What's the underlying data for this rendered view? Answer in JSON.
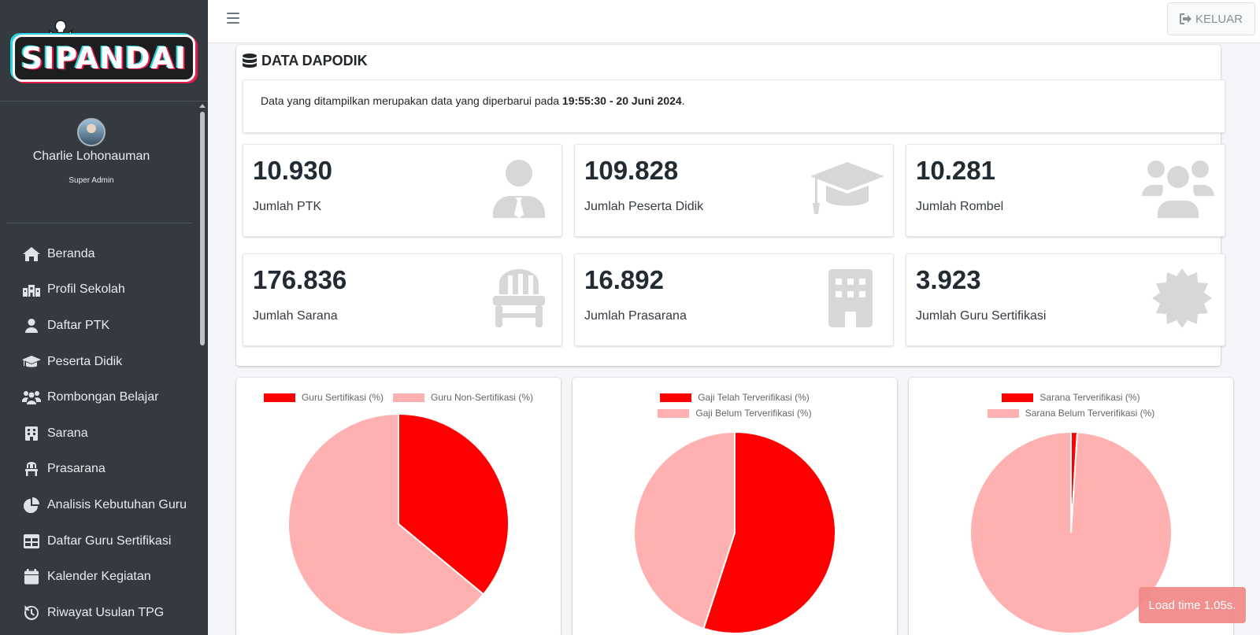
{
  "app": {
    "brand": "SIPANDAI"
  },
  "user": {
    "name": "Charlie Lohonauman",
    "role": "Super Admin"
  },
  "sidebar": {
    "items": [
      {
        "label": "Beranda",
        "icon": "home-icon"
      },
      {
        "label": "Profil Sekolah",
        "icon": "school-icon"
      },
      {
        "label": "Daftar PTK",
        "icon": "user-tie-icon"
      },
      {
        "label": "Peserta Didik",
        "icon": "graduation-cap-icon"
      },
      {
        "label": "Rombongan Belajar",
        "icon": "users-icon"
      },
      {
        "label": "Sarana",
        "icon": "building-icon"
      },
      {
        "label": "Prasarana",
        "icon": "chair-icon"
      },
      {
        "label": "Analisis Kebutuhan Guru",
        "icon": "chart-pie-icon"
      },
      {
        "label": "Daftar Guru Sertifikasi",
        "icon": "table-icon"
      },
      {
        "label": "Kalender Kegiatan",
        "icon": "calendar-icon"
      },
      {
        "label": "Riwayat Usulan TPG",
        "icon": "history-icon"
      }
    ]
  },
  "topbar": {
    "logout_label": "KELUAR"
  },
  "main": {
    "title": "DATA DAPODIK",
    "info_prefix": "Data yang ditampilkan merupakan data yang diperbarui pada ",
    "info_time": "19:55:30 - 20 Juni 2024",
    "info_suffix": ".",
    "stats": [
      {
        "value": "10.930",
        "label": "Jumlah PTK",
        "icon": "user-tie-icon"
      },
      {
        "value": "109.828",
        "label": "Jumlah Peserta Didik",
        "icon": "graduation-cap-icon"
      },
      {
        "value": "10.281",
        "label": "Jumlah Rombel",
        "icon": "users-icon"
      },
      {
        "value": "176.836",
        "label": "Jumlah Sarana",
        "icon": "chair-icon"
      },
      {
        "value": "16.892",
        "label": "Jumlah Prasarana",
        "icon": "building-icon"
      },
      {
        "value": "3.923",
        "label": "Jumlah Guru Sertifikasi",
        "icon": "certificate-icon"
      }
    ]
  },
  "colors": {
    "primary_slice": "#ff0000",
    "secondary_slice": "#ffb0b0",
    "sidebar_bg": "#343a40"
  },
  "chart_data": [
    {
      "type": "pie",
      "categories": [
        "Guru Sertifikasi (%)",
        "Guru Non-Sertifikasi (%)"
      ],
      "values": [
        36,
        64
      ],
      "legend": "top"
    },
    {
      "type": "pie",
      "categories": [
        "Gaji Telah Terverifikasi (%)",
        "Gaji Belum Terverifikasi (%)"
      ],
      "values": [
        55,
        45
      ],
      "legend": "top"
    },
    {
      "type": "pie",
      "categories": [
        "Sarana Terverifikasi (%)",
        "Sarana Belum Terverifikasi (%)"
      ],
      "values": [
        1,
        99
      ],
      "legend": "top"
    }
  ],
  "toast": {
    "text": "Load time 1.05s."
  }
}
